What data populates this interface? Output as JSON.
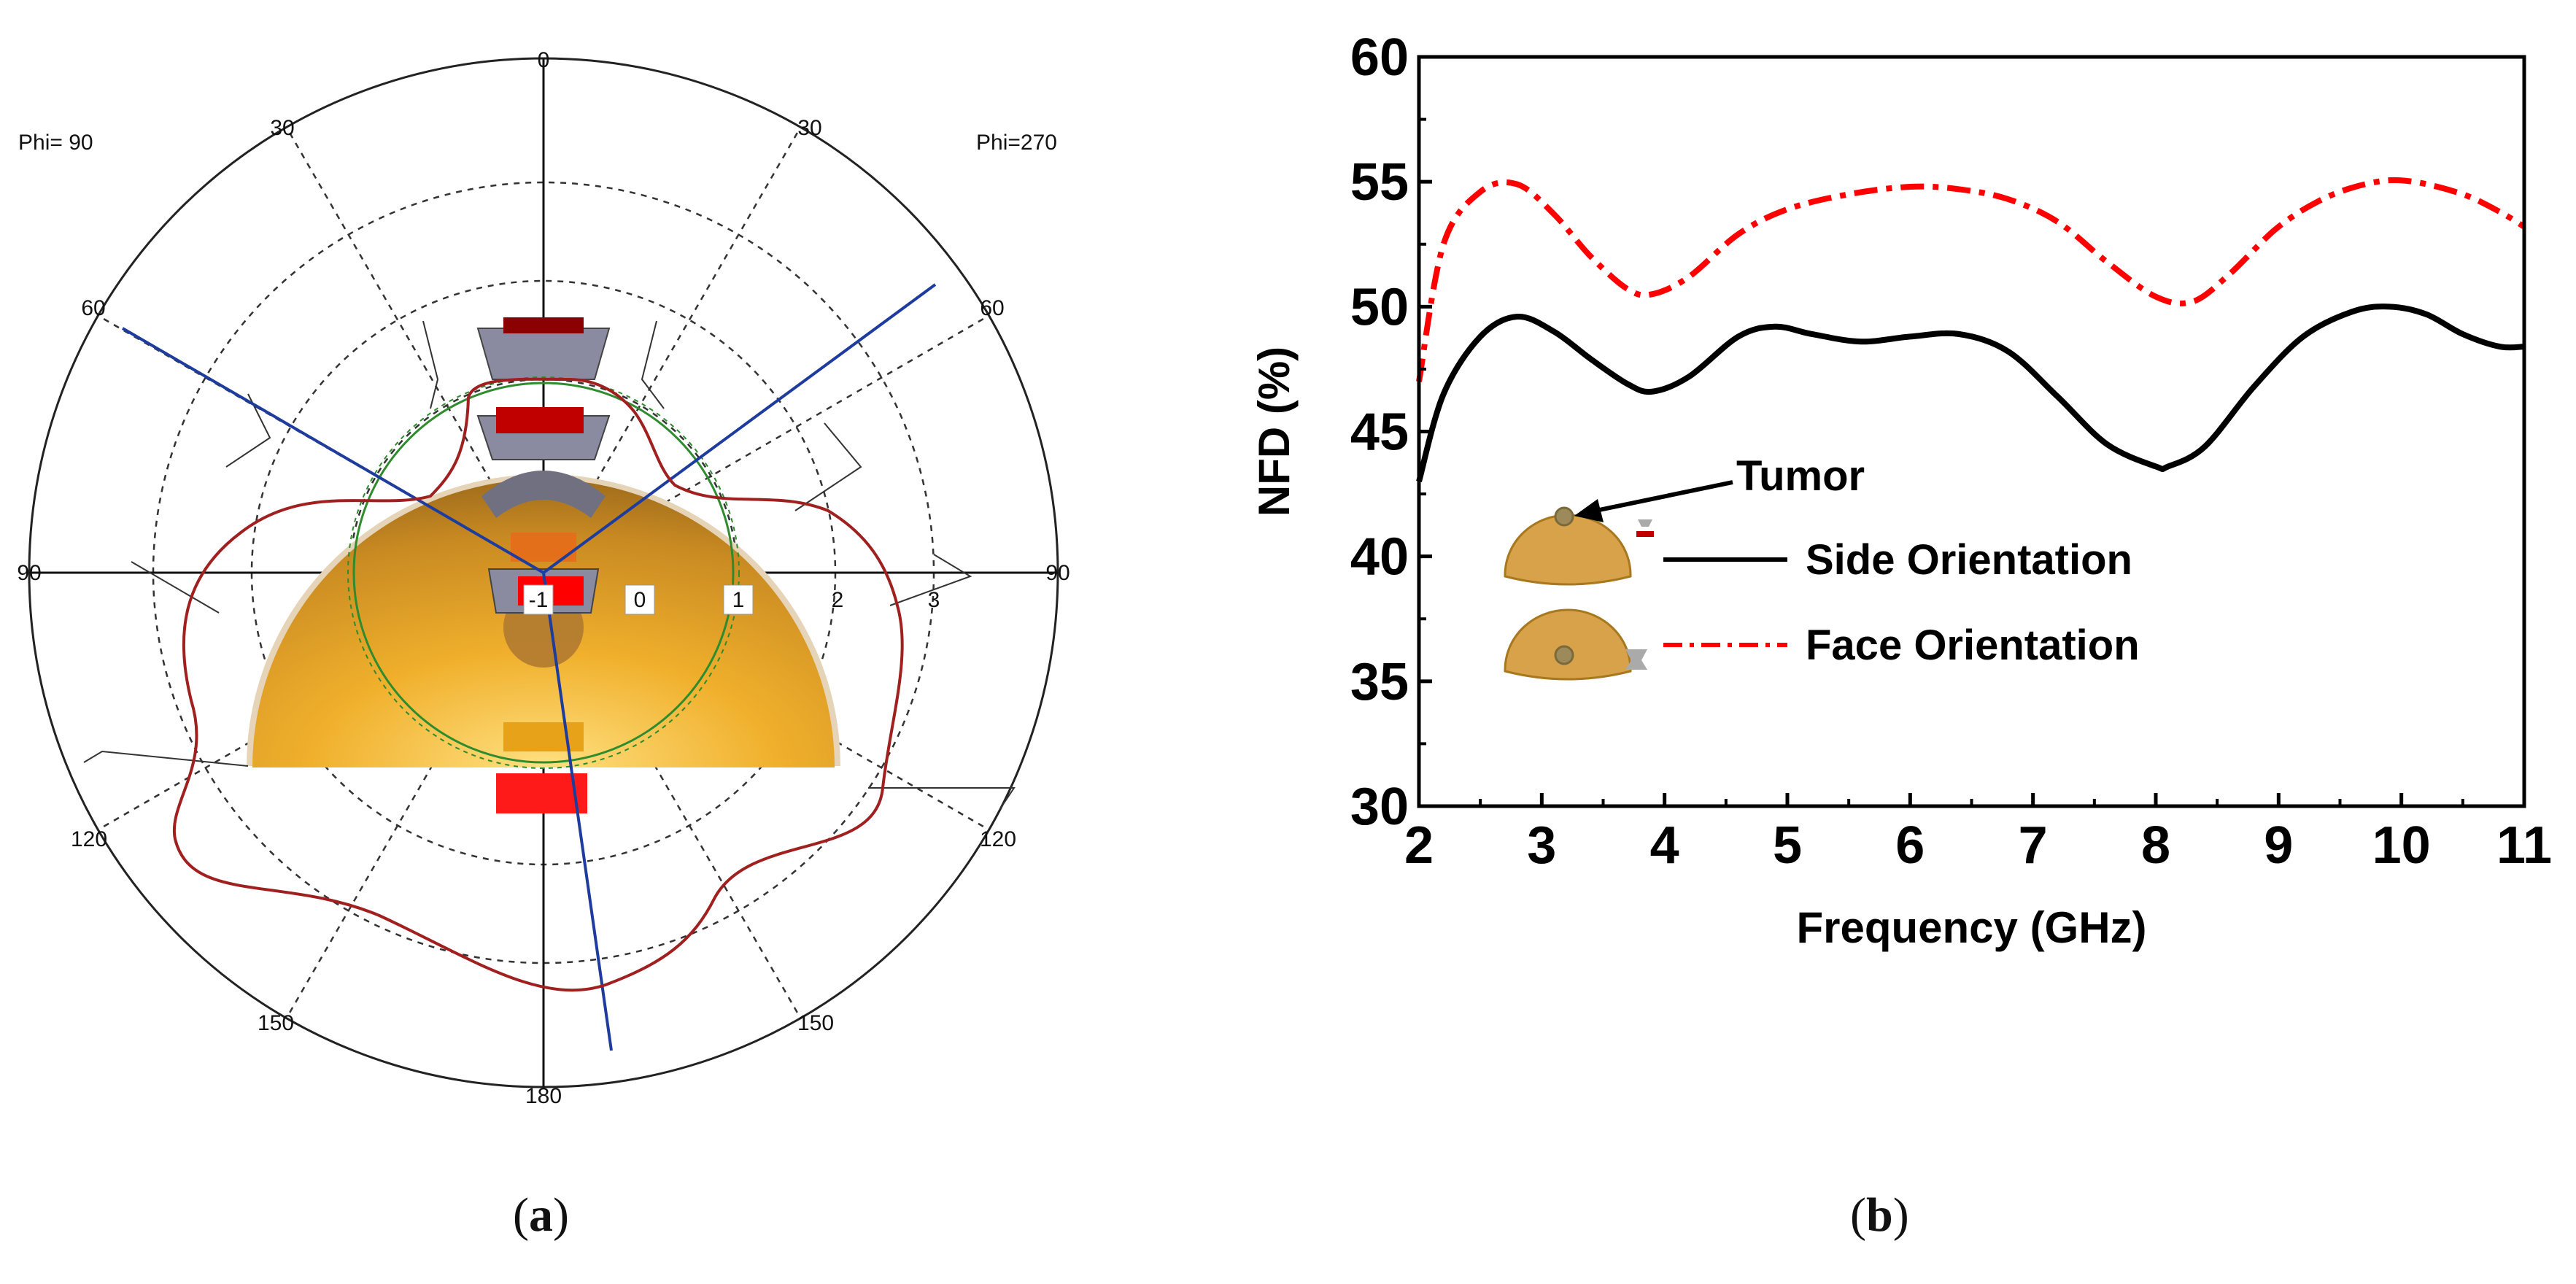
{
  "panel_labels": {
    "a": "a",
    "b": "b"
  },
  "polar": {
    "phi_left": "Phi= 90",
    "phi_right": "Phi=270",
    "theta_ticks": {
      "top": "0",
      "upper_left": "30",
      "upper_right": "30",
      "mid_left": "60",
      "mid_right": "60",
      "left": "90",
      "right": "90",
      "lower_left": "120",
      "lower_right": "120",
      "bottom_left": "150",
      "bottom_right": "150",
      "bottom": "180"
    },
    "radial_ticks": [
      "-1",
      "0",
      "1",
      "2",
      "3"
    ]
  },
  "chart_data": {
    "type": "line",
    "title": "",
    "xlabel": "Frequency (GHz)",
    "ylabel": "NFD (%)",
    "xlim": [
      2,
      11
    ],
    "ylim": [
      30,
      60
    ],
    "xticks": [
      "2",
      "3",
      "4",
      "5",
      "6",
      "7",
      "8",
      "9",
      "10",
      "11"
    ],
    "yticks": [
      "30",
      "35",
      "40",
      "45",
      "50",
      "55",
      "60"
    ],
    "series": [
      {
        "name": "Side Orientation",
        "color": "#000000",
        "style": "solid",
        "x": [
          2.0,
          2.2,
          2.5,
          2.8,
          3.1,
          3.4,
          3.7,
          3.9,
          4.2,
          4.6,
          4.9,
          5.2,
          5.6,
          6.0,
          6.4,
          6.8,
          7.2,
          7.6,
          8.0,
          8.1,
          8.4,
          8.8,
          9.2,
          9.6,
          9.9,
          10.2,
          10.5,
          10.8,
          11.0
        ],
        "y": [
          43.0,
          46.5,
          48.8,
          49.6,
          49.0,
          47.9,
          46.9,
          46.6,
          47.2,
          48.8,
          49.2,
          48.9,
          48.6,
          48.8,
          48.9,
          48.2,
          46.4,
          44.5,
          43.6,
          43.6,
          44.4,
          46.8,
          48.8,
          49.8,
          50.0,
          49.7,
          48.9,
          48.4,
          48.4
        ]
      },
      {
        "name": "Face Orientation",
        "color": "#ff0000",
        "style": "dashdot",
        "x": [
          2.0,
          2.2,
          2.5,
          2.8,
          3.1,
          3.4,
          3.7,
          3.9,
          4.2,
          4.6,
          5.0,
          5.5,
          6.0,
          6.4,
          6.8,
          7.2,
          7.6,
          8.0,
          8.3,
          8.6,
          9.0,
          9.4,
          9.8,
          10.1,
          10.5,
          10.8,
          11.0
        ],
        "y": [
          47.0,
          52.5,
          54.6,
          54.9,
          53.7,
          52.0,
          50.7,
          50.5,
          51.2,
          52.9,
          53.9,
          54.5,
          54.8,
          54.7,
          54.3,
          53.4,
          51.8,
          50.4,
          50.2,
          51.3,
          53.2,
          54.4,
          55.0,
          55.0,
          54.5,
          53.8,
          53.2
        ]
      }
    ],
    "annotations": [
      {
        "text": "Tumor"
      }
    ],
    "legend_position": "inside-bottom-left"
  }
}
